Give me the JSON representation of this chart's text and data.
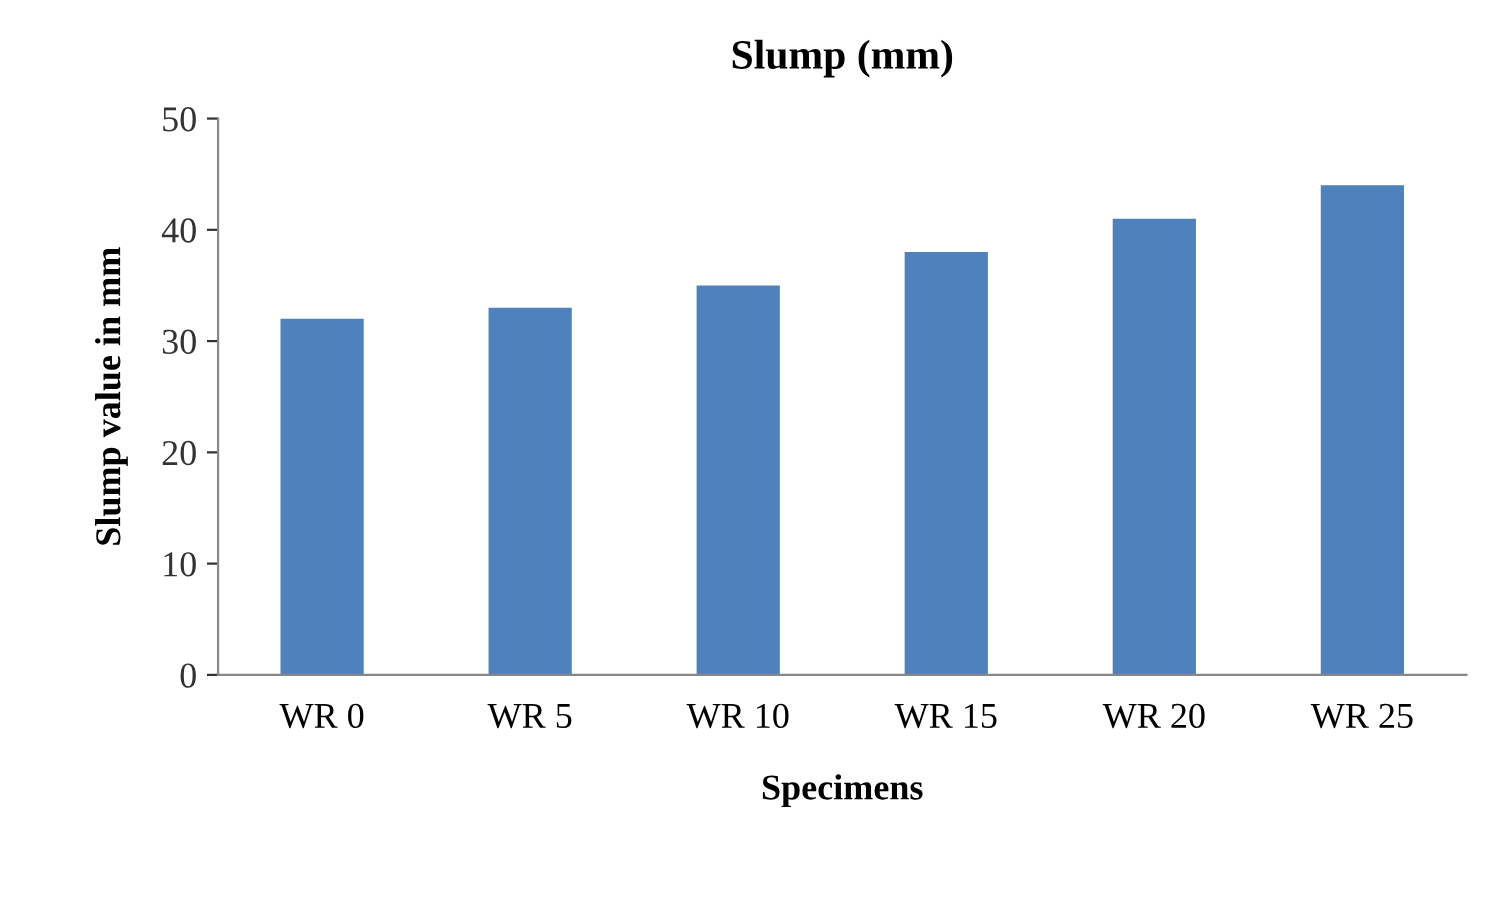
{
  "chart_data": {
    "type": "bar",
    "title": "Slump (mm)",
    "xlabel": "Specimens",
    "ylabel": "Slump value in mm",
    "categories": [
      "WR 0",
      "WR 5",
      "WR 10",
      "WR 15",
      "WR 20",
      "WR 25"
    ],
    "values": [
      32,
      33,
      35,
      38,
      41,
      44
    ],
    "color": "#4f81bd",
    "ylim": [
      0,
      50
    ],
    "yticks": [
      0,
      10,
      20,
      30,
      40,
      50
    ],
    "grid": false,
    "legend": false
  }
}
